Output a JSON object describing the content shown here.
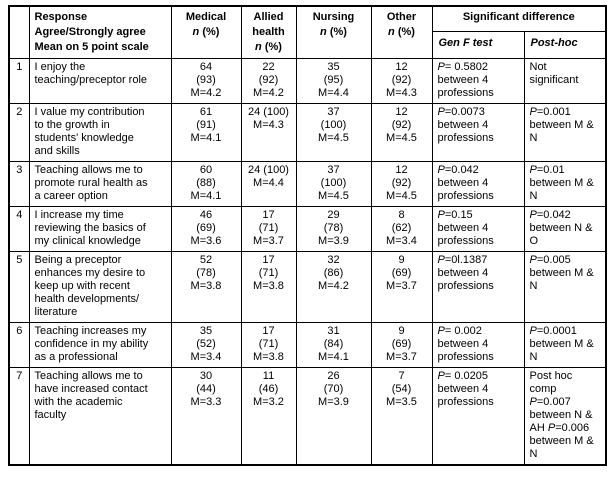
{
  "colors": {
    "border": "#000000",
    "text": "#000000",
    "background": "#ffffff"
  },
  "table": {
    "header": {
      "corner": "",
      "response_lines": [
        "Response",
        "Agree/Strongly agree",
        "Mean on 5 point scale"
      ],
      "groups": [
        {
          "label": "Medical"
        },
        {
          "label": "Allied health"
        },
        {
          "label": "Nursing"
        },
        {
          "label": "Other"
        }
      ],
      "n_label": "n",
      "pct_label": "(%)",
      "significant_difference": "Significant difference",
      "gen_f_test": "Gen F test",
      "post_hoc": "Post-hoc"
    },
    "rows": [
      {
        "num": "1",
        "statement": "I enjoy the\nteaching/preceptor role",
        "medical": "64\n(93)\nM=4.2",
        "allied_health": "22\n(92)\nM=4.2",
        "nursing": "35\n(95)\nM=4.4",
        "other": "12\n(92)\nM=4.3",
        "gen_f_test": "P= 0.5802\nbetween 4\nprofessions",
        "post_hoc": "Not\nsignificant"
      },
      {
        "num": "2",
        "statement": "I value my contribution\nto the growth in\nstudents' knowledge\nand skills",
        "medical": "61\n(91)\nM=4.1",
        "allied_health": "24 (100)\nM=4.3",
        "nursing": "37\n(100)\nM=4.5",
        "other": "12\n(92)\nM=4.5",
        "gen_f_test": "P=0.0073\nbetween 4\nprofessions",
        "post_hoc": "P=0.001\nbetween M &\nN"
      },
      {
        "num": "3",
        "statement": "Teaching allows me to\npromote rural health as\na career option",
        "medical": "60\n(88)\nM=4.1",
        "allied_health": "24 (100)\nM=4.4",
        "nursing": "37\n(100)\nM=4.5",
        "other": "12\n(92)\nM=4.5",
        "gen_f_test": "P=0.042\nbetween 4\nprofessions",
        "post_hoc": "P=0.01\nbetween M &\nN"
      },
      {
        "num": "4",
        "statement": "I increase my time\nreviewing the basics of\nmy clinical knowledge",
        "medical": "46\n(69)\nM=3.6",
        "allied_health": "17\n(71)\nM=3.7",
        "nursing": "29\n(78)\nM=3.9",
        "other": "8\n(62)\nM=3.4",
        "gen_f_test": "P=0.15\nbetween 4\nprofessions",
        "post_hoc": "P=0.042\nbetween N &\nO"
      },
      {
        "num": "5",
        "statement": "Being a preceptor\nenhances my desire to\nkeep up with recent\nhealth developments/\nliterature",
        "medical": "52\n(78)\nM=3.8",
        "allied_health": "17\n(71)\nM=3.8",
        "nursing": "32\n(86)\nM=4.2",
        "other": "9\n(69)\nM=3.7",
        "gen_f_test": "P=0l.1387\nbetween 4\nprofessions",
        "post_hoc": "P=0.005\nbetween M &\nN"
      },
      {
        "num": "6",
        "statement": "Teaching increases my\nconfidence in my ability\nas a professional",
        "medical": "35\n(52)\nM=3.4",
        "allied_health": "17\n(71)\nM=3.8",
        "nursing": "31\n(84)\nM=4.1",
        "other": "9\n(69)\nM=3.7",
        "gen_f_test": "P= 0.002\nbetween 4\nprofessions",
        "post_hoc": "P=0.0001\nbetween M &\nN"
      },
      {
        "num": "7",
        "statement": "Teaching allows me to\nhave increased contact\nwith the academic\nfaculty",
        "medical": "30\n(44)\nM=3.3",
        "allied_health": "11\n(46)\nM=3.2",
        "nursing": "26\n(70)\nM=3.9",
        "other": "7\n(54)\nM=3.5",
        "gen_f_test": "P= 0.0205\nbetween 4\nprofessions",
        "post_hoc": "Post hoc\ncomp\nP=0.007\nbetween N &\nAH P=0.006\nbetween M &\nN"
      }
    ]
  }
}
